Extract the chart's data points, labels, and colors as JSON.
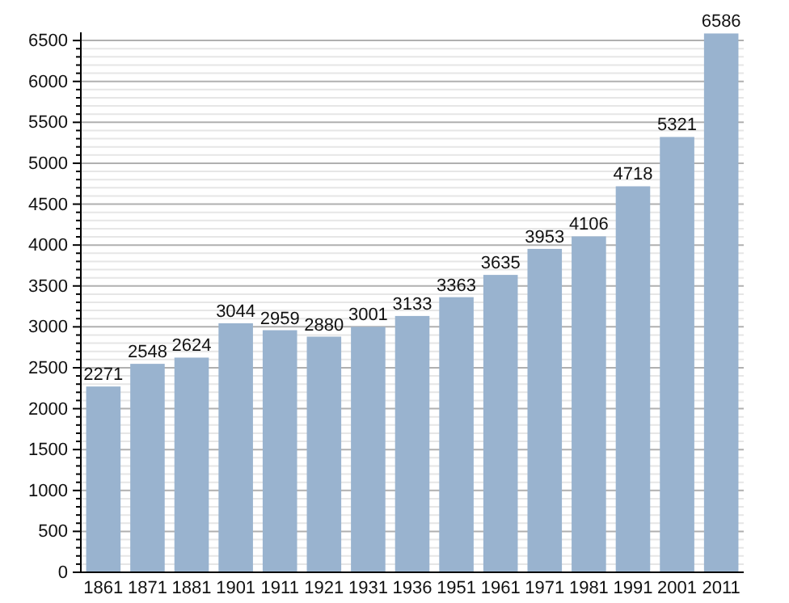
{
  "chart_data": {
    "type": "bar",
    "categories": [
      "1861",
      "1871",
      "1881",
      "1901",
      "1911",
      "1921",
      "1931",
      "1936",
      "1951",
      "1961",
      "1971",
      "1981",
      "1991",
      "2001",
      "2011"
    ],
    "values": [
      2271,
      2548,
      2624,
      3044,
      2959,
      2880,
      3001,
      3133,
      3363,
      3635,
      3953,
      4106,
      4718,
      5321,
      6586
    ],
    "color": "#99b3cf",
    "data_labels": true,
    "grid": "y",
    "ylim": [
      0,
      6600
    ],
    "yticks": [
      0,
      {
        "value": 100,
        "label": null
      },
      {
        "value": 200,
        "label": null
      },
      {
        "value": 300,
        "label": null
      },
      {
        "value": 400,
        "label": null
      },
      500,
      {
        "value": 600,
        "label": null
      },
      {
        "value": 700,
        "label": null
      },
      {
        "value": 800,
        "label": null
      },
      {
        "value": 900,
        "label": null
      },
      1000,
      {
        "value": 1100,
        "label": null
      },
      {
        "value": 1200,
        "label": null
      },
      {
        "value": 1300,
        "label": null
      },
      {
        "value": 1400,
        "label": null
      },
      1500,
      {
        "value": 1600,
        "label": null
      },
      {
        "value": 1700,
        "label": null
      },
      {
        "value": 1800,
        "label": null
      },
      {
        "value": 1900,
        "label": null
      },
      2000,
      {
        "value": 2100,
        "label": null
      },
      {
        "value": 2200,
        "label": null
      },
      {
        "value": 2300,
        "label": null
      },
      {
        "value": 2400,
        "label": null
      },
      2500,
      {
        "value": 2600,
        "label": null
      },
      {
        "value": 2700,
        "label": null
      },
      {
        "value": 2800,
        "label": null
      },
      {
        "value": 2900,
        "label": null
      },
      3000,
      {
        "value": 3100,
        "label": null
      },
      {
        "value": 3200,
        "label": null
      },
      {
        "value": 3300,
        "label": null
      },
      {
        "value": 3400,
        "label": null
      },
      3500,
      {
        "value": 3600,
        "label": null
      },
      {
        "value": 3700,
        "label": null
      },
      {
        "value": 3800,
        "label": null
      },
      {
        "value": 3900,
        "label": null
      },
      4000,
      {
        "value": 4100,
        "label": null
      },
      {
        "value": 4200,
        "label": null
      },
      {
        "value": 4300,
        "label": null
      },
      {
        "value": 4400,
        "label": null
      },
      4500,
      {
        "value": 4600,
        "label": null
      },
      {
        "value": 4700,
        "label": null
      },
      {
        "value": 4800,
        "label": null
      },
      {
        "value": 4900,
        "label": null
      },
      5000,
      {
        "value": 5100,
        "label": null
      },
      {
        "value": 5200,
        "label": null
      },
      {
        "value": 5300,
        "label": null
      },
      {
        "value": 5400,
        "label": null
      },
      5500,
      {
        "value": 5600,
        "label": null
      },
      {
        "value": 5700,
        "label": null
      },
      {
        "value": 5800,
        "label": null
      },
      {
        "value": 5900,
        "label": null
      },
      6000,
      {
        "value": 6100,
        "label": null
      },
      {
        "value": 6200,
        "label": null
      },
      {
        "value": 6300,
        "label": null
      },
      {
        "value": 6400,
        "label": null
      },
      6500
    ]
  }
}
